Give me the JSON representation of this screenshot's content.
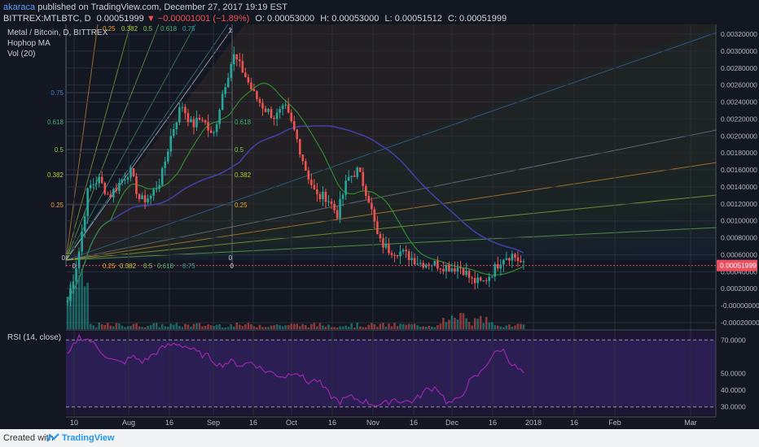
{
  "header": {
    "author": "akaraca",
    "published": "published on TradingView.com, December 27, 2017 19:19 EST",
    "symbol": "BITTREX:MTLBTC, D",
    "last": "0.00051999",
    "change": "−0.00001001 (−1.89%)",
    "ohlc": {
      "o": "O: 0.00053000",
      "h": "H: 0.00053000",
      "l": "L: 0.00051512",
      "c": "C: 0.00051999"
    }
  },
  "legend": {
    "title": "Metal / Bitcoin, D, BITTREX",
    "ma": "Hophop MA",
    "vol": "Vol (20)",
    "rsi": "RSI (14, close)"
  },
  "footer": {
    "created": "Created with",
    "brand": "TradingView"
  },
  "colors": {
    "up": "#26a69a",
    "down": "#ef5350",
    "rsi": "#9c27b0",
    "ma_slow": "#3f3fa6",
    "ma_fast": "#2e8b2e",
    "bg": "#131722",
    "current": "#e94f5e"
  },
  "chart_data": {
    "type": "candlestick",
    "x_ticks": [
      "10",
      "Aug",
      "16",
      "Sep",
      "16",
      "Oct",
      "16",
      "Nov",
      "16",
      "Dec",
      "16",
      "2018",
      "16",
      "Feb",
      "Mar"
    ],
    "price_ticks": [
      "0.00320000",
      "0.00300000",
      "0.00280000",
      "0.00260000",
      "0.00240000",
      "0.00220000",
      "0.00200000",
      "0.00180000",
      "0.00160000",
      "0.00140000",
      "0.00120000",
      "0.00100000",
      "0.00080000",
      "0.00060000",
      "0.00040000",
      "0.00020000",
      "-0.00000000",
      "-0.00020000"
    ],
    "current_price": "0.00051999",
    "price_range": [
      -0.0002,
      0.00325
    ],
    "rsi_ticks": [
      "70.0000",
      "50.0000",
      "40.0000",
      "30.0000"
    ],
    "rsi_levels": [
      70,
      30
    ],
    "rsi_range": [
      25,
      75
    ],
    "fib_levels": [
      "0",
      "0.25",
      "0.382",
      "0.5",
      "0.618",
      "0.75",
      "1"
    ],
    "close_path": [
      0.00012,
      0.0006,
      0.0014,
      0.0015,
      0.0013,
      0.00145,
      0.0016,
      0.00125,
      0.0013,
      0.0015,
      0.002,
      0.00235,
      0.0021,
      0.0022,
      0.00195,
      0.0025,
      0.0029,
      0.0027,
      0.00245,
      0.0023,
      0.0022,
      0.0023,
      0.002,
      0.0016,
      0.0013,
      0.0013,
      0.0011,
      0.0015,
      0.0016,
      0.0013,
      0.0008,
      0.0007,
      0.00068,
      0.00062,
      0.00055,
      0.00055,
      0.00052,
      0.0005,
      0.0005,
      0.00035,
      0.00032,
      0.00045,
      0.00062,
      0.00064,
      0.00052
    ],
    "rsi_path": [
      60,
      72,
      70,
      64,
      58,
      56,
      60,
      57,
      62,
      66,
      68,
      66,
      62,
      60,
      55,
      57,
      55,
      57,
      52,
      50,
      48,
      52,
      45,
      46,
      38,
      33,
      36,
      34,
      32,
      31,
      35,
      33,
      34,
      40,
      42,
      32,
      34,
      45,
      50,
      60,
      65,
      55,
      50
    ]
  }
}
